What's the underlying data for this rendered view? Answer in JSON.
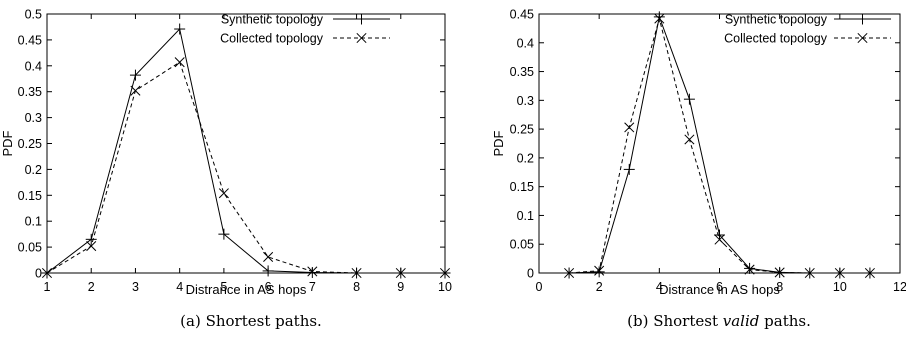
{
  "chart_data": [
    {
      "type": "line",
      "caption": {
        "before": "(a) Shortest paths.",
        "emph": "",
        "after": ""
      },
      "xlabel": "Distrance in AS hops",
      "ylabel": "PDF",
      "xlim": [
        1,
        10
      ],
      "ylim": [
        0,
        0.5
      ],
      "xticks": [
        "1",
        "2",
        "3",
        "4",
        "5",
        "6",
        "7",
        "8",
        "9",
        "10"
      ],
      "yticks": [
        "0",
        "0.05",
        "0.1",
        "0.15",
        "0.2",
        "0.25",
        "0.3",
        "0.35",
        "0.4",
        "0.45",
        "0.5"
      ],
      "grid": false,
      "legend": "top-right",
      "series": [
        {
          "name": "Synthetic topology",
          "marker": "plus",
          "dash": "solid",
          "x": [
            1,
            2,
            3,
            4,
            5,
            6,
            7,
            8,
            9,
            10
          ],
          "y": [
            0,
            0.065,
            0.382,
            0.471,
            0.075,
            0.004,
            0.001,
            0,
            0,
            0
          ]
        },
        {
          "name": "Collected topology",
          "marker": "cross",
          "dash": "dashed",
          "x": [
            1,
            2,
            3,
            4,
            5,
            6,
            7,
            8,
            9,
            10
          ],
          "y": [
            0,
            0.052,
            0.352,
            0.407,
            0.154,
            0.031,
            0.003,
            0,
            0,
            0
          ]
        }
      ]
    },
    {
      "type": "line",
      "caption": {
        "before": "(b) Shortest ",
        "emph": "valid",
        "after": " paths."
      },
      "xlabel": "Distrance in AS hops",
      "ylabel": "PDF",
      "xlim": [
        0,
        12
      ],
      "ylim": [
        0,
        0.45
      ],
      "xticks": [
        "0",
        "2",
        "4",
        "6",
        "8",
        "10",
        "12"
      ],
      "yticks": [
        "0",
        "0.05",
        "0.1",
        "0.15",
        "0.2",
        "0.25",
        "0.3",
        "0.35",
        "0.4",
        "0.45"
      ],
      "grid": false,
      "legend": "top-right",
      "series": [
        {
          "name": "Synthetic topology",
          "marker": "plus",
          "dash": "solid",
          "x": [
            1,
            2,
            3,
            4,
            5,
            6,
            7,
            8,
            9,
            10,
            11
          ],
          "y": [
            0,
            0.002,
            0.18,
            0.445,
            0.302,
            0.066,
            0.008,
            0.001,
            0,
            0,
            0
          ]
        },
        {
          "name": "Collected topology",
          "marker": "cross",
          "dash": "dashed",
          "x": [
            1,
            2,
            3,
            4,
            5,
            6,
            7,
            8,
            9,
            10,
            11
          ],
          "y": [
            0,
            0.004,
            0.253,
            0.442,
            0.232,
            0.058,
            0.006,
            0.001,
            0,
            0,
            0
          ]
        }
      ]
    }
  ]
}
